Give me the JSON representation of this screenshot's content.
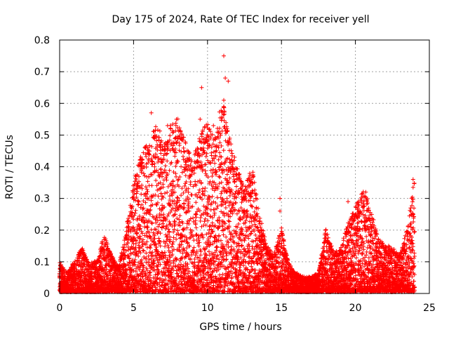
{
  "chart_data": {
    "type": "scatter",
    "title": "Day 175 of 2024, Rate Of TEC Index for receiver yell",
    "xlabel": "GPS time / hours",
    "ylabel": "ROTI / TECUs",
    "xlim": [
      0,
      25
    ],
    "ylim": [
      0,
      0.8
    ],
    "xticks": [
      0,
      5,
      10,
      15,
      20,
      25
    ],
    "yticks": [
      0,
      0.1,
      0.2,
      0.3,
      0.4,
      0.5,
      0.6,
      0.7,
      0.8
    ],
    "grid": true,
    "marker": "+",
    "series": [
      {
        "name": "ROTI",
        "color": "#ff0000",
        "envelope": [
          {
            "x": 0.0,
            "y": 0.1
          },
          {
            "x": 0.5,
            "y": 0.06
          },
          {
            "x": 1.0,
            "y": 0.1
          },
          {
            "x": 1.5,
            "y": 0.15
          },
          {
            "x": 2.0,
            "y": 0.09
          },
          {
            "x": 2.5,
            "y": 0.1
          },
          {
            "x": 3.0,
            "y": 0.18
          },
          {
            "x": 3.5,
            "y": 0.12
          },
          {
            "x": 4.0,
            "y": 0.08
          },
          {
            "x": 4.5,
            "y": 0.2
          },
          {
            "x": 5.0,
            "y": 0.35
          },
          {
            "x": 5.5,
            "y": 0.44
          },
          {
            "x": 6.0,
            "y": 0.48
          },
          {
            "x": 6.5,
            "y": 0.56
          },
          {
            "x": 7.0,
            "y": 0.47
          },
          {
            "x": 7.5,
            "y": 0.53
          },
          {
            "x": 8.0,
            "y": 0.55
          },
          {
            "x": 8.5,
            "y": 0.48
          },
          {
            "x": 9.0,
            "y": 0.42
          },
          {
            "x": 9.5,
            "y": 0.5
          },
          {
            "x": 10.0,
            "y": 0.55
          },
          {
            "x": 10.5,
            "y": 0.49
          },
          {
            "x": 11.0,
            "y": 0.62
          },
          {
            "x": 11.5,
            "y": 0.48
          },
          {
            "x": 12.0,
            "y": 0.4
          },
          {
            "x": 12.5,
            "y": 0.33
          },
          {
            "x": 13.0,
            "y": 0.4
          },
          {
            "x": 13.5,
            "y": 0.25
          },
          {
            "x": 14.0,
            "y": 0.15
          },
          {
            "x": 14.5,
            "y": 0.12
          },
          {
            "x": 15.0,
            "y": 0.21
          },
          {
            "x": 15.5,
            "y": 0.09
          },
          {
            "x": 16.0,
            "y": 0.06
          },
          {
            "x": 16.5,
            "y": 0.05
          },
          {
            "x": 17.0,
            "y": 0.05
          },
          {
            "x": 17.5,
            "y": 0.06
          },
          {
            "x": 18.0,
            "y": 0.2
          },
          {
            "x": 18.5,
            "y": 0.13
          },
          {
            "x": 19.0,
            "y": 0.14
          },
          {
            "x": 19.5,
            "y": 0.22
          },
          {
            "x": 20.0,
            "y": 0.27
          },
          {
            "x": 20.5,
            "y": 0.32
          },
          {
            "x": 21.0,
            "y": 0.28
          },
          {
            "x": 21.5,
            "y": 0.18
          },
          {
            "x": 22.0,
            "y": 0.15
          },
          {
            "x": 22.5,
            "y": 0.14
          },
          {
            "x": 23.0,
            "y": 0.12
          },
          {
            "x": 23.5,
            "y": 0.2
          },
          {
            "x": 24.0,
            "y": 0.37
          }
        ],
        "outliers": [
          {
            "x": 6.2,
            "y": 0.57
          },
          {
            "x": 7.3,
            "y": 0.53
          },
          {
            "x": 7.9,
            "y": 0.55
          },
          {
            "x": 9.6,
            "y": 0.65
          },
          {
            "x": 9.5,
            "y": 0.55
          },
          {
            "x": 10.4,
            "y": 0.53
          },
          {
            "x": 11.1,
            "y": 0.75
          },
          {
            "x": 11.2,
            "y": 0.68
          },
          {
            "x": 11.4,
            "y": 0.67
          },
          {
            "x": 11.1,
            "y": 0.61
          },
          {
            "x": 11.1,
            "y": 0.59
          },
          {
            "x": 11.5,
            "y": 0.49
          },
          {
            "x": 14.9,
            "y": 0.3
          },
          {
            "x": 14.9,
            "y": 0.26
          },
          {
            "x": 19.5,
            "y": 0.29
          },
          {
            "x": 20.7,
            "y": 0.32
          },
          {
            "x": 23.9,
            "y": 0.36
          }
        ]
      }
    ]
  }
}
